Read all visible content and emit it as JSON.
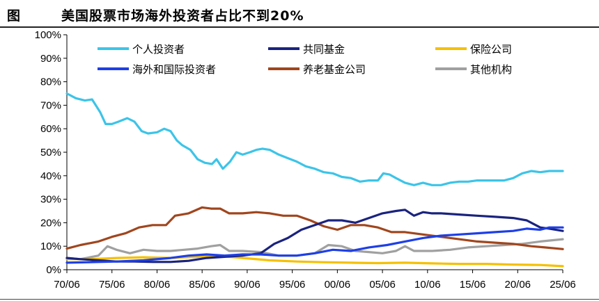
{
  "header": {
    "figure_label": "图",
    "title": "美国股票市场海外投资者占比不到20%"
  },
  "chart_data": {
    "type": "line",
    "title": "美国股票市场海外投资者占比不到20%",
    "xlabel": "",
    "ylabel": "",
    "xlim": [
      1970.5,
      2025.5
    ],
    "ylim": [
      0,
      100
    ],
    "y_ticks": [
      0,
      10,
      20,
      30,
      40,
      50,
      60,
      70,
      80,
      90,
      100
    ],
    "y_tick_labels": [
      "0%",
      "10%",
      "20%",
      "30%",
      "40%",
      "50%",
      "60%",
      "70%",
      "80%",
      "90%",
      "100%"
    ],
    "x_ticks": [
      1970.5,
      1975.5,
      1980.5,
      1985.5,
      1990.5,
      1995.5,
      2000.5,
      2005.5,
      2010.5,
      2015.5,
      2020.5,
      2025.5
    ],
    "x_tick_labels": [
      "70/06",
      "75/06",
      "80/06",
      "85/06",
      "90/06",
      "95/06",
      "00/06",
      "05/06",
      "10/06",
      "15/06",
      "20/06",
      "25/06"
    ],
    "grid": false,
    "legend_position": "top",
    "series": [
      {
        "name": "个人投资者",
        "color": "#3cc4e8",
        "points": [
          [
            1970.5,
            75
          ],
          [
            1971.5,
            73
          ],
          [
            1972.5,
            72
          ],
          [
            1973.3,
            72.5
          ],
          [
            1974.2,
            67
          ],
          [
            1974.8,
            62
          ],
          [
            1975.5,
            62
          ],
          [
            1976.2,
            63
          ],
          [
            1977.2,
            64.5
          ],
          [
            1978,
            63
          ],
          [
            1978.8,
            59
          ],
          [
            1979.5,
            58
          ],
          [
            1980.5,
            58.5
          ],
          [
            1981.3,
            60
          ],
          [
            1982,
            59
          ],
          [
            1982.7,
            55
          ],
          [
            1983.3,
            53
          ],
          [
            1984.2,
            51
          ],
          [
            1985,
            47
          ],
          [
            1985.8,
            45.5
          ],
          [
            1986.6,
            45
          ],
          [
            1987.1,
            47
          ],
          [
            1987.8,
            43
          ],
          [
            1988.6,
            46
          ],
          [
            1989.3,
            50
          ],
          [
            1990,
            49
          ],
          [
            1990.8,
            50
          ],
          [
            1991.5,
            51
          ],
          [
            1992.2,
            51.5
          ],
          [
            1993,
            51
          ],
          [
            1994,
            49
          ],
          [
            1995,
            47.5
          ],
          [
            1996,
            46
          ],
          [
            1997,
            44
          ],
          [
            1998,
            43
          ],
          [
            1999,
            41.5
          ],
          [
            2000,
            41
          ],
          [
            2001,
            39.5
          ],
          [
            2002,
            39
          ],
          [
            2003,
            37.5
          ],
          [
            2004,
            38
          ],
          [
            2005,
            38
          ],
          [
            2005.6,
            41
          ],
          [
            2006.3,
            40.5
          ],
          [
            2007,
            39
          ],
          [
            2008,
            37
          ],
          [
            2009,
            36
          ],
          [
            2010,
            37
          ],
          [
            2011,
            36
          ],
          [
            2012,
            36
          ],
          [
            2013,
            37
          ],
          [
            2014,
            37.5
          ],
          [
            2015,
            37.5
          ],
          [
            2016,
            38
          ],
          [
            2017,
            38
          ],
          [
            2018,
            38
          ],
          [
            2019,
            38
          ],
          [
            2020,
            39
          ],
          [
            2021,
            41
          ],
          [
            2022,
            42
          ],
          [
            2023,
            41.5
          ],
          [
            2024,
            42
          ],
          [
            2025.5,
            42
          ]
        ]
      },
      {
        "name": "共同基金",
        "color": "#1a237e",
        "points": [
          [
            1970.5,
            5
          ],
          [
            1972,
            4.5
          ],
          [
            1974,
            4
          ],
          [
            1976,
            3.5
          ],
          [
            1978,
            3.5
          ],
          [
            1980,
            3.3
          ],
          [
            1982,
            3.3
          ],
          [
            1984,
            3.8
          ],
          [
            1986,
            5
          ],
          [
            1988,
            5.5
          ],
          [
            1990,
            6
          ],
          [
            1992,
            7
          ],
          [
            1993.5,
            11
          ],
          [
            1995,
            13.5
          ],
          [
            1996.5,
            17
          ],
          [
            1998,
            19
          ],
          [
            1999.5,
            21
          ],
          [
            2001,
            21
          ],
          [
            2002.5,
            20
          ],
          [
            2004,
            22
          ],
          [
            2005.5,
            24
          ],
          [
            2007,
            25
          ],
          [
            2008,
            25.5
          ],
          [
            2009,
            23
          ],
          [
            2010,
            24.5
          ],
          [
            2011,
            24
          ],
          [
            2012,
            24
          ],
          [
            2014,
            23.5
          ],
          [
            2016,
            23
          ],
          [
            2018,
            22.5
          ],
          [
            2020,
            22
          ],
          [
            2021.5,
            21
          ],
          [
            2023,
            18
          ],
          [
            2024,
            17.5
          ],
          [
            2025.5,
            16.5
          ]
        ]
      },
      {
        "name": "保险公司",
        "color": "#f5c000",
        "points": [
          [
            1970.5,
            4.5
          ],
          [
            1973,
            4.5
          ],
          [
            1976,
            5
          ],
          [
            1979,
            5.3
          ],
          [
            1982,
            5
          ],
          [
            1985,
            5.5
          ],
          [
            1987,
            6
          ],
          [
            1990,
            5
          ],
          [
            1993,
            4
          ],
          [
            1996,
            3.5
          ],
          [
            1999,
            3.2
          ],
          [
            2002,
            3
          ],
          [
            2005,
            2.8
          ],
          [
            2008,
            3
          ],
          [
            2011,
            2.7
          ],
          [
            2014,
            2.5
          ],
          [
            2017,
            2.5
          ],
          [
            2020,
            2.2
          ],
          [
            2023,
            2
          ],
          [
            2025.5,
            1.5
          ]
        ]
      },
      {
        "name": "海外和国际投资者",
        "color": "#1e3fe6",
        "points": [
          [
            1970.5,
            3
          ],
          [
            1973,
            3.2
          ],
          [
            1976,
            3.5
          ],
          [
            1979,
            4
          ],
          [
            1982,
            5
          ],
          [
            1984,
            6
          ],
          [
            1986,
            6.5
          ],
          [
            1988,
            6
          ],
          [
            1990,
            6.5
          ],
          [
            1992,
            6.5
          ],
          [
            1994,
            6
          ],
          [
            1996,
            6
          ],
          [
            1998,
            7
          ],
          [
            2000,
            8.5
          ],
          [
            2002,
            8
          ],
          [
            2004,
            9.5
          ],
          [
            2006,
            10.5
          ],
          [
            2008,
            12
          ],
          [
            2010,
            13.5
          ],
          [
            2012,
            14.5
          ],
          [
            2014,
            15
          ],
          [
            2016,
            15.5
          ],
          [
            2018,
            16
          ],
          [
            2020,
            16.5
          ],
          [
            2021.5,
            17.5
          ],
          [
            2023,
            17
          ],
          [
            2024,
            18
          ],
          [
            2025.5,
            18
          ]
        ]
      },
      {
        "name": "养老基金公司",
        "color": "#a0461e",
        "points": [
          [
            1970.5,
            9
          ],
          [
            1972,
            10.5
          ],
          [
            1974,
            12
          ],
          [
            1975.5,
            14
          ],
          [
            1977,
            15.5
          ],
          [
            1978.5,
            18
          ],
          [
            1980,
            19
          ],
          [
            1981.5,
            19
          ],
          [
            1982.5,
            23
          ],
          [
            1984,
            24
          ],
          [
            1985.5,
            26.5
          ],
          [
            1986.5,
            26
          ],
          [
            1987.5,
            26
          ],
          [
            1988.5,
            24
          ],
          [
            1990,
            24
          ],
          [
            1991.5,
            24.5
          ],
          [
            1993,
            24
          ],
          [
            1994.5,
            23
          ],
          [
            1996,
            23
          ],
          [
            1997.5,
            21
          ],
          [
            1999,
            18.5
          ],
          [
            2000.5,
            17
          ],
          [
            2002,
            19
          ],
          [
            2003.5,
            19
          ],
          [
            2005,
            18
          ],
          [
            2006.5,
            16
          ],
          [
            2008,
            16
          ],
          [
            2010,
            15
          ],
          [
            2012,
            14
          ],
          [
            2014,
            13
          ],
          [
            2016,
            12
          ],
          [
            2018,
            11.5
          ],
          [
            2020,
            11
          ],
          [
            2022,
            10
          ],
          [
            2023.5,
            9.5
          ],
          [
            2025.5,
            8.8
          ]
        ]
      },
      {
        "name": "其他机构",
        "color": "#a0a0a0",
        "points": [
          [
            1970.5,
            5
          ],
          [
            1972,
            4.5
          ],
          [
            1974,
            6
          ],
          [
            1975,
            10
          ],
          [
            1976,
            8.5
          ],
          [
            1977.5,
            7
          ],
          [
            1979,
            8.5
          ],
          [
            1980.5,
            8
          ],
          [
            1982,
            8
          ],
          [
            1983.5,
            8.5
          ],
          [
            1985,
            9
          ],
          [
            1986.5,
            10
          ],
          [
            1987.5,
            10.5
          ],
          [
            1988.5,
            8
          ],
          [
            1990,
            8
          ],
          [
            1992,
            7.5
          ],
          [
            1994,
            6
          ],
          [
            1996,
            6
          ],
          [
            1998,
            7
          ],
          [
            1999.5,
            10.5
          ],
          [
            2001,
            10
          ],
          [
            2002.5,
            8
          ],
          [
            2004,
            7.5
          ],
          [
            2005.5,
            7
          ],
          [
            2007,
            8
          ],
          [
            2008,
            10
          ],
          [
            2009,
            8
          ],
          [
            2011,
            8
          ],
          [
            2013,
            8.5
          ],
          [
            2015,
            9.5
          ],
          [
            2017,
            10
          ],
          [
            2019,
            10.5
          ],
          [
            2021,
            11
          ],
          [
            2023,
            12
          ],
          [
            2025.5,
            13
          ]
        ]
      }
    ]
  }
}
